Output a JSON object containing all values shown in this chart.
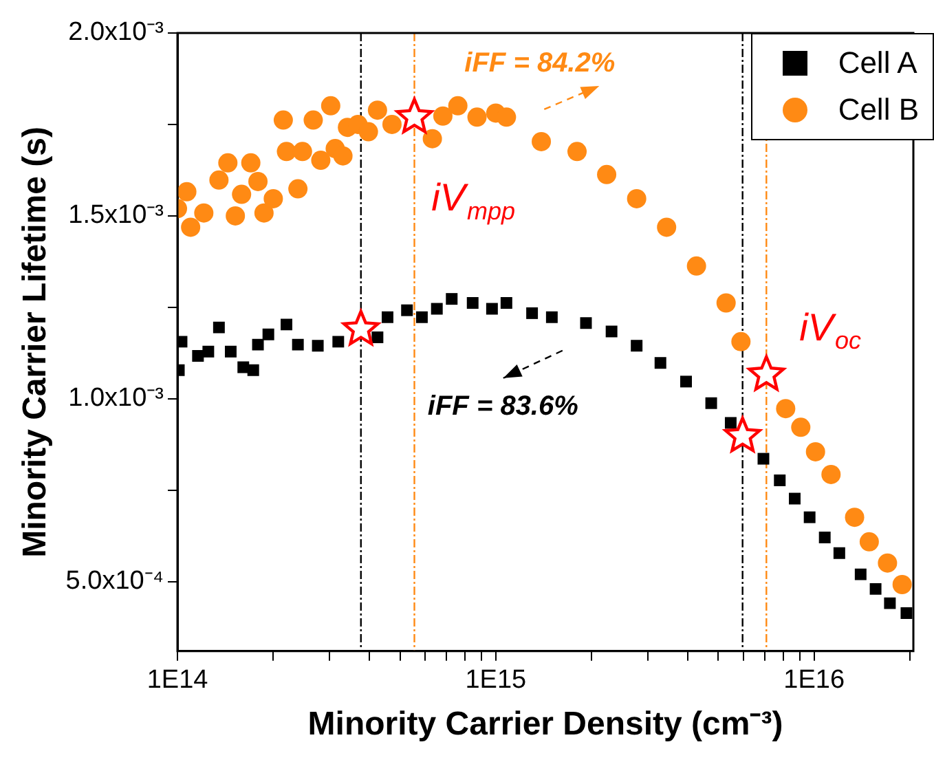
{
  "chart_data": {
    "type": "scatter",
    "xlabel": "Minority Carrier Density (cm⁻³)",
    "ylabel": "Minority Carrier Lifetime (s)",
    "log": "x",
    "grid": false,
    "legend": "top right",
    "xlim": [
      100000000000000.0,
      2.05e+16
    ],
    "ylim": [
      0.00031,
      0.002
    ],
    "xticks": [
      {
        "value": 100000000000000.0,
        "label": "1E14"
      },
      {
        "value": 200000000000000.0,
        "label": null
      },
      {
        "value": 300000000000000.0,
        "label": null
      },
      {
        "value": 400000000000000.0,
        "label": null
      },
      {
        "value": 500000000000000.0,
        "label": null
      },
      {
        "value": 600000000000000.0,
        "label": null
      },
      {
        "value": 700000000000000.0,
        "label": null
      },
      {
        "value": 800000000000000.0,
        "label": null
      },
      {
        "value": 900000000000000.0,
        "label": null
      },
      {
        "value": 1000000000000000.0,
        "label": "1E15"
      },
      {
        "value": 2000000000000000.0,
        "label": null
      },
      {
        "value": 3000000000000000.0,
        "label": null
      },
      {
        "value": 4000000000000000.0,
        "label": null
      },
      {
        "value": 5000000000000000.0,
        "label": null
      },
      {
        "value": 6000000000000000.0,
        "label": null
      },
      {
        "value": 7000000000000000.0,
        "label": null
      },
      {
        "value": 8000000000000000.0,
        "label": null
      },
      {
        "value": 9000000000000000.0,
        "label": null
      },
      {
        "value": 1e+16,
        "label": "1E16"
      },
      {
        "value": 2e+16,
        "label": null
      }
    ],
    "yticks": [
      {
        "value": 0.0005,
        "label": "5.0x10⁻⁴"
      },
      {
        "value": 0.00075,
        "label": null
      },
      {
        "value": 0.001,
        "label": "1.0x10⁻³"
      },
      {
        "value": 0.00125,
        "label": null
      },
      {
        "value": 0.0015,
        "label": "1.5x10⁻³"
      },
      {
        "value": 0.00175,
        "label": null
      },
      {
        "value": 0.002,
        "label": "2.0x10⁻³"
      }
    ],
    "series": [
      {
        "name": "Cell A",
        "marker": "square",
        "color": "#000000",
        "x": [
          101000000000000.0,
          103000000000000.0,
          116000000000000.0,
          125000000000000.0,
          135000000000000.0,
          147000000000000.0,
          161000000000000.0,
          173000000000000.0,
          179000000000000.0,
          193000000000000.0,
          220000000000000.0,
          239000000000000.0,
          276000000000000.0,
          320000000000000.0,
          369000000000000.0,
          425000000000000.0,
          457000000000000.0,
          526000000000000.0,
          586000000000000.0,
          653000000000000.0,
          727000000000000.0,
          846000000000000.0,
          973000000000000.0,
          1080000000000000.0,
          1300000000000000.0,
          1500000000000000.0,
          1920000000000000.0,
          2310000000000000.0,
          2770000000000000.0,
          3290000000000000.0,
          3960000000000000.0,
          4750000000000000.0,
          5470000000000000.0,
          6090000000000000.0,
          6930000000000000.0,
          7800000000000000.0,
          8690000000000000.0,
          9680000000000000.0,
          1.08e+16,
          1.2e+16,
          1.4e+16,
          1.56e+16,
          1.73e+16,
          1.95e+16
        ],
        "values": [
          0.001078,
          0.001156,
          0.001117,
          0.001129,
          0.001195,
          0.001129,
          0.001086,
          0.001078,
          0.001148,
          0.001176,
          0.001203,
          0.001148,
          0.001145,
          0.001156,
          null,
          0.001168,
          0.001223,
          0.001242,
          0.001223,
          0.001246,
          0.001273,
          0.001262,
          0.001246,
          0.001262,
          0.001234,
          0.001223,
          0.001207,
          0.001184,
          0.001145,
          0.001098,
          0.001047,
          0.000988,
          0.000934,
          null,
          0.000836,
          0.000777,
          0.000727,
          0.000676,
          0.000621,
          0.000578,
          0.00052,
          0.00048,
          0.000441,
          0.000414
        ]
      },
      {
        "name": "Cell B",
        "marker": "circle",
        "color": "#ff8a14",
        "x": [
          100000000000000.0,
          107000000000000.0,
          110000000000000.0,
          121000000000000.0,
          135000000000000.0,
          144000000000000.0,
          152000000000000.0,
          159000000000000.0,
          170000000000000.0,
          179000000000000.0,
          187000000000000.0,
          200000000000000.0,
          215000000000000.0,
          220000000000000.0,
          239000000000000.0,
          247000000000000.0,
          267000000000000.0,
          282000000000000.0,
          303000000000000.0,
          313000000000000.0,
          331000000000000.0,
          342000000000000.0,
          369000000000000.0,
          398000000000000.0,
          425000000000000.0,
          472000000000000.0,
          526000000000000.0,
          632000000000000.0,
          682000000000000.0,
          760000000000000.0,
          873000000000000.0,
          1000000000000000.0,
          1080000000000000.0,
          1390000000000000.0,
          1800000000000000.0,
          2230000000000000.0,
          2770000000000000.0,
          3440000000000000.0,
          4270000000000000.0,
          5290000000000000.0,
          5890000000000000.0,
          8140000000000000.0,
          9080000000000000.0,
          1.01e+16,
          1.13e+16,
          1.34e+16,
          1.49e+16,
          1.7e+16,
          1.89e+16
        ],
        "values": [
          0.00152,
          0.001566,
          0.001469,
          0.001508,
          0.001598,
          0.001645,
          0.0015,
          0.001559,
          0.001645,
          0.001594,
          0.001508,
          0.001547,
          0.001762,
          0.001676,
          0.001574,
          0.001676,
          0.001762,
          0.001652,
          0.001801,
          0.001684,
          0.001664,
          0.001742,
          0.00175,
          0.00173,
          0.001789,
          0.00175,
          null,
          0.001711,
          0.001773,
          0.001801,
          0.00177,
          0.001781,
          0.00177,
          0.001703,
          0.001676,
          0.001613,
          0.001547,
          0.001469,
          0.001363,
          0.001262,
          0.001156,
          0.000973,
          0.000922,
          0.000855,
          0.000793,
          0.000676,
          0.000609,
          0.000551,
          0.000492
        ]
      },
      {
        "marker": "star",
        "color": "#ff0000",
        "x": [
          377000000000000.0,
          555000000000000.0,
          5960000000000000.0,
          7080000000000000.0
        ],
        "values": [
          0.00119,
          0.00177,
          0.000898,
          0.001066
        ]
      }
    ],
    "ref_lines": [
      {
        "axis": "x",
        "value": 377000000000000.0,
        "color": "#000000",
        "line_style": "dashed"
      },
      {
        "axis": "x",
        "value": 555000000000000.0,
        "color": "#ff8a14",
        "line_style": "dashed"
      },
      {
        "axis": "x",
        "value": 5960000000000000.0,
        "color": "#000000",
        "line_style": "dashed"
      },
      {
        "axis": "x",
        "value": 7080000000000000.0,
        "color": "#ff8a14",
        "line_style": "dashed"
      }
    ],
    "annotations": [
      "iFF = 84.2%",
      "iFF = 83.6%",
      "iV$_{mpp}$",
      "iV$_{oc}$"
    ]
  }
}
